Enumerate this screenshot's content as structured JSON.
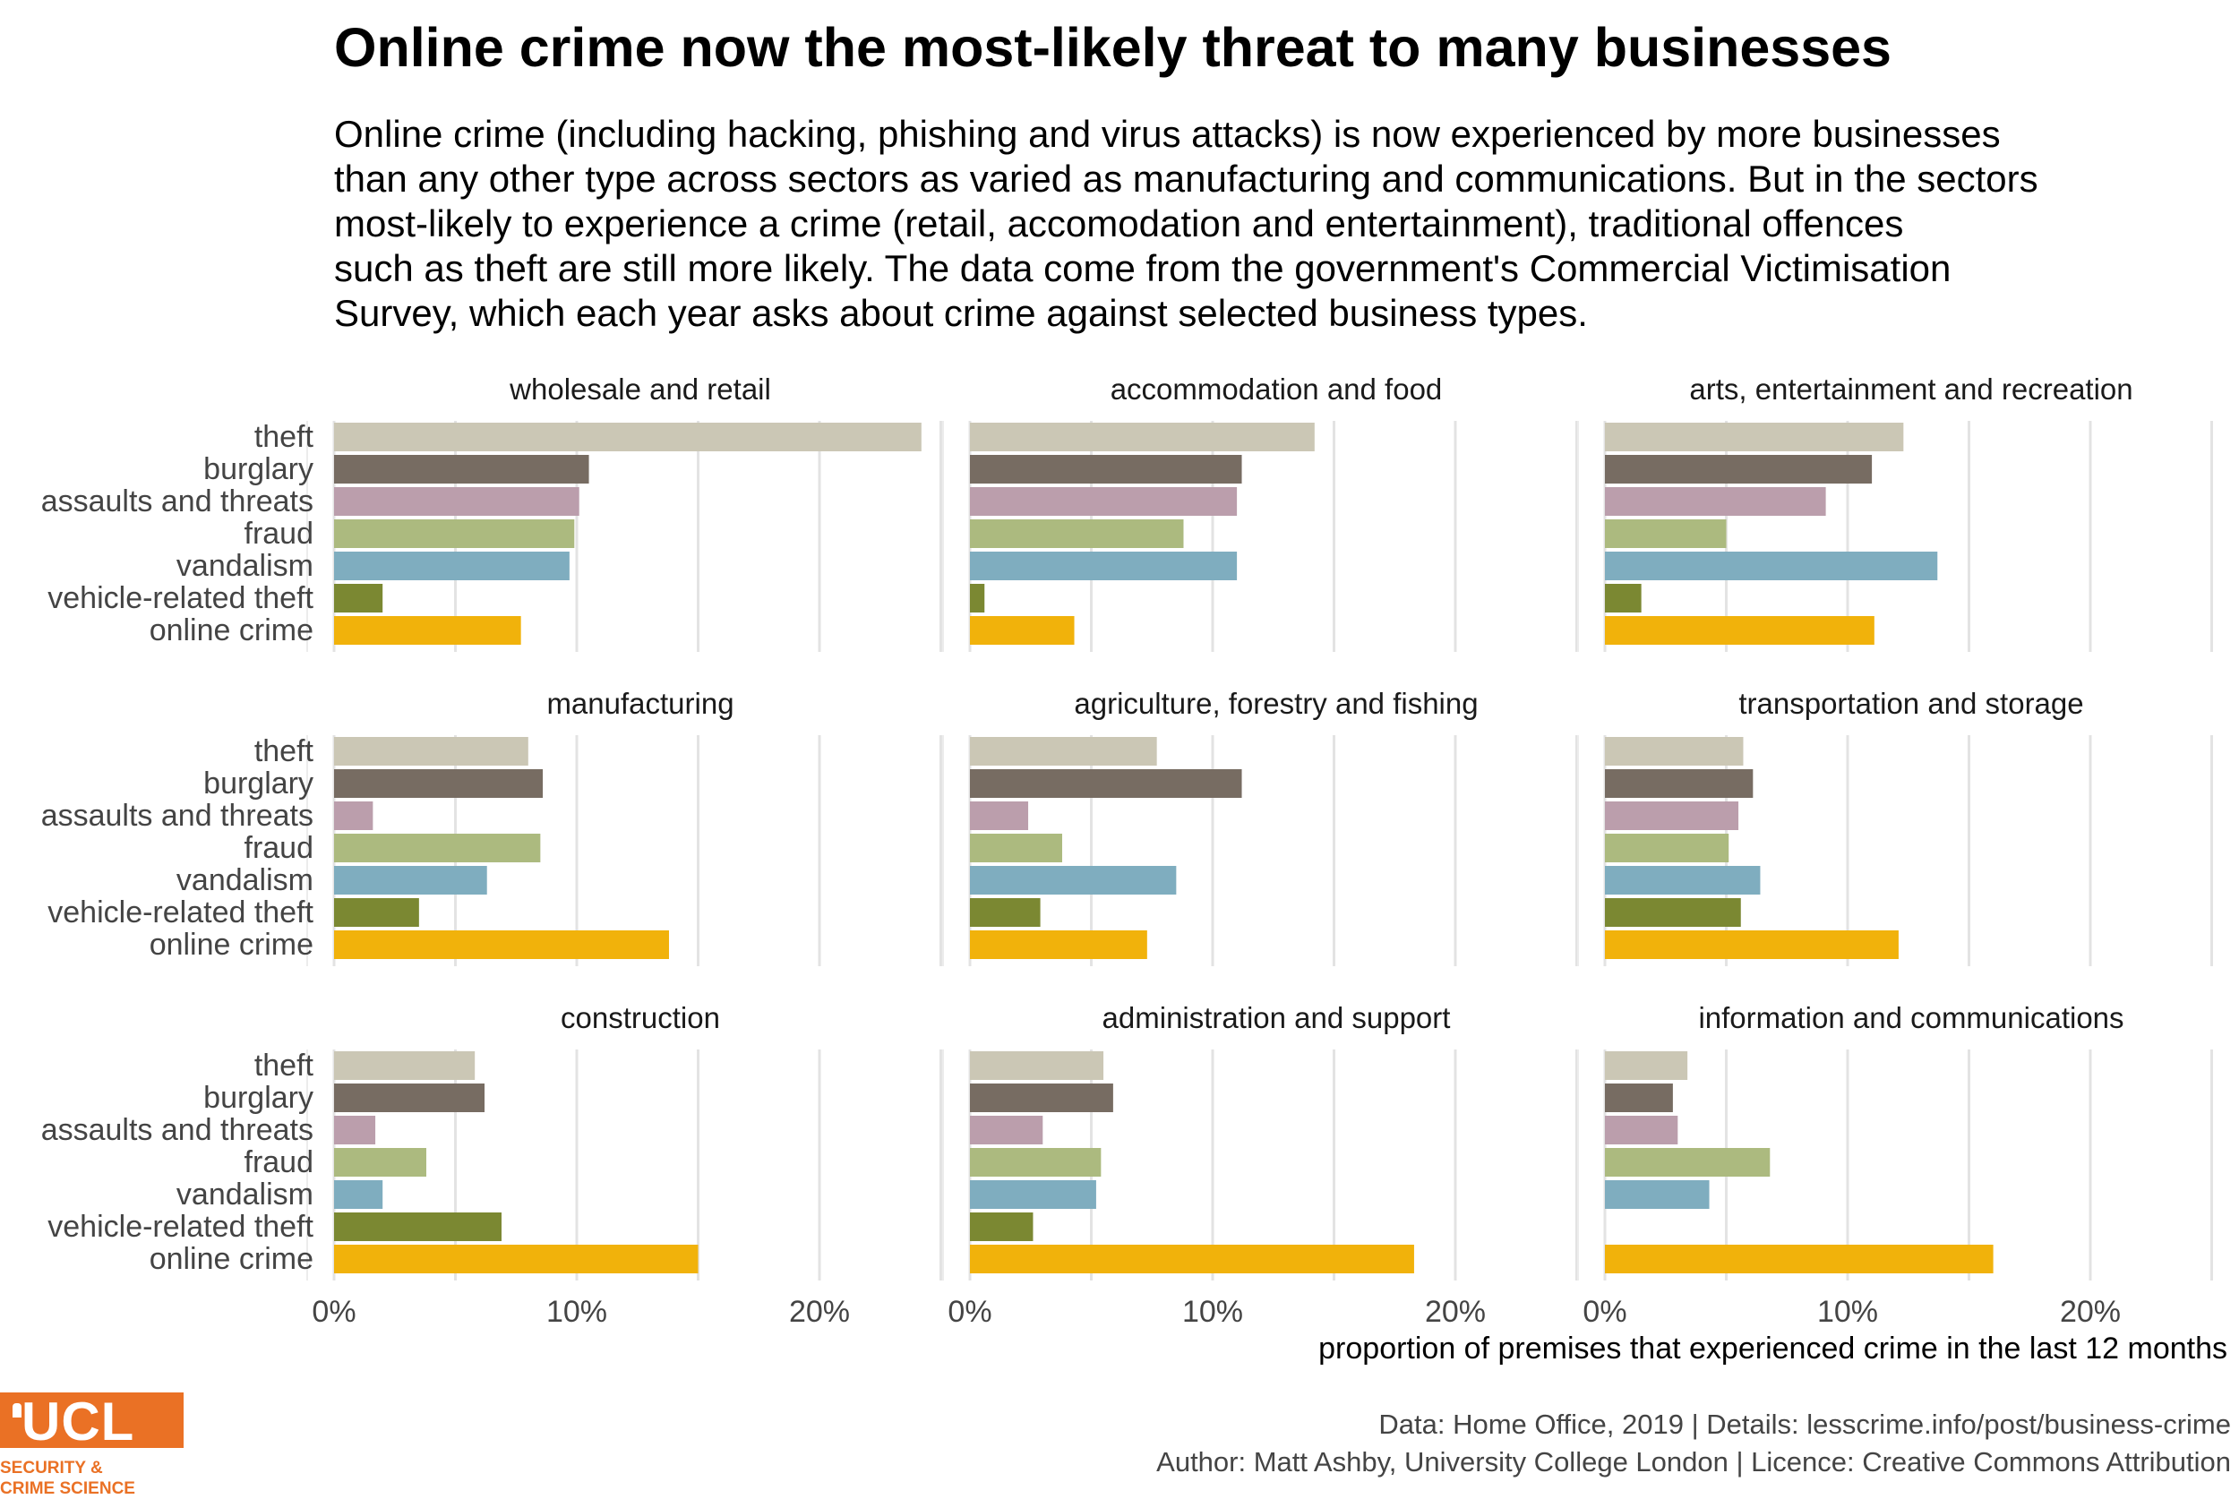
{
  "title": "Online crime now the most-likely threat to many businesses",
  "subtitle_lines": [
    "Online crime (including hacking, phishing and virus attacks) is now experienced by more businesses",
    "than any other type across sectors as varied as manufacturing and communications. But in the sectors",
    "most-likely to experience a crime (retail, accomodation and entertainment), traditional offences",
    "such as theft are still more likely. The data come from the government's Commercial Victimisation",
    "Survey, which each year asks about crime against selected business types."
  ],
  "caption": {
    "line1": "Data: Home Office, 2019 |  Details: lesscrime.info/post/business-crime",
    "line2": "Author: Matt Ashby, University College London |  Licence: Creative Commons Attribution"
  },
  "logo": {
    "mark": "UCL",
    "line1": "SECURITY &",
    "line2": "CRIME SCIENCE",
    "color": "#ea7125"
  },
  "chart_data": {
    "type": "bar",
    "orientation": "horizontal",
    "facets": "3x3",
    "xlabel": "proportion of premises that experienced crime in the last 12 months",
    "x_ticks": [
      "0%",
      "10%",
      "20%"
    ],
    "xlim": [
      0,
      0.26
    ],
    "grid": true,
    "categories": [
      "theft",
      "burglary",
      "assaults and threats",
      "fraud",
      "vandalism",
      "vehicle-related theft",
      "online crime"
    ],
    "colors": [
      "#cbc7b5",
      "#776c62",
      "#bb9eac",
      "#acba7f",
      "#7fadbf",
      "#7b8832",
      "#f1b20b"
    ],
    "panels": [
      {
        "name": "wholesale and retail",
        "values": [
          0.242,
          0.105,
          0.101,
          0.099,
          0.097,
          0.02,
          0.077
        ]
      },
      {
        "name": "accommodation and food",
        "values": [
          0.142,
          0.112,
          0.11,
          0.088,
          0.11,
          0.006,
          0.043
        ]
      },
      {
        "name": "arts, entertainment and recreation",
        "values": [
          0.123,
          0.11,
          0.091,
          0.05,
          0.137,
          0.015,
          0.111
        ]
      },
      {
        "name": "manufacturing",
        "values": [
          0.08,
          0.086,
          0.016,
          0.085,
          0.063,
          0.035,
          0.138
        ]
      },
      {
        "name": "agriculture, forestry and fishing",
        "values": [
          0.077,
          0.112,
          0.024,
          0.038,
          0.085,
          0.029,
          0.073
        ]
      },
      {
        "name": "transportation and storage",
        "values": [
          0.057,
          0.061,
          0.055,
          0.051,
          0.064,
          0.056,
          0.121
        ]
      },
      {
        "name": "construction",
        "values": [
          0.058,
          0.062,
          0.017,
          0.038,
          0.02,
          0.069,
          0.15
        ]
      },
      {
        "name": "administration and support",
        "values": [
          0.055,
          0.059,
          0.03,
          0.054,
          0.052,
          0.026,
          0.183
        ]
      },
      {
        "name": "information and communications",
        "values": [
          0.034,
          0.028,
          0.03,
          0.068,
          0.043,
          0.0,
          0.16
        ]
      }
    ]
  }
}
